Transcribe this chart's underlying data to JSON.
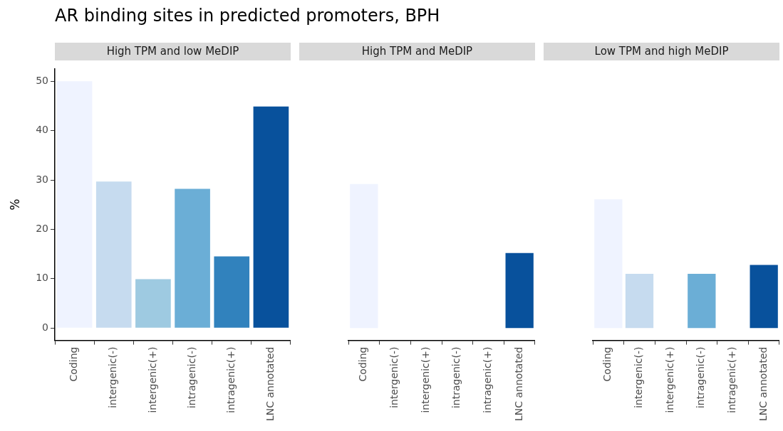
{
  "chart_data": [
    {
      "type": "bar",
      "title": "AR binding sites in predicted promoters, BPH",
      "subtitle": "High TPM and low MeDIP",
      "ylabel": "%",
      "categories": [
        "Coding",
        "intergenic(-)",
        "intergenic(+)",
        "intragenic(-)",
        "intragenic(+)",
        "LNC annotated"
      ],
      "values": [
        50,
        29.7,
        9.9,
        28.2,
        14.5,
        44.9
      ],
      "colors": [
        "#eff3ff",
        "#c6dbef",
        "#9ecae1",
        "#6baed6",
        "#3182bd",
        "#08519c"
      ],
      "ylim": [
        -2.5,
        52.5
      ],
      "yticks": [
        0,
        10,
        20,
        30,
        40,
        50
      ],
      "grid": false
    },
    {
      "type": "bar",
      "subtitle": "High TPM and MeDIP",
      "categories": [
        "Coding",
        "intergenic(-)",
        "intergenic(+)",
        "intragenic(-)",
        "intragenic(+)",
        "LNC annotated"
      ],
      "values": [
        29.2,
        null,
        null,
        null,
        null,
        15.2
      ],
      "colors": [
        "#eff3ff",
        "#c6dbef",
        "#9ecae1",
        "#6baed6",
        "#3182bd",
        "#08519c"
      ],
      "ylim": [
        -2.5,
        50
      ],
      "yticks": [
        0,
        10,
        20,
        30,
        40,
        50
      ],
      "grid": false,
      "tick_labels": "x"
    },
    {
      "type": "bar",
      "subtitle": "Low TPM and high MeDIP",
      "categories": [
        "Coding",
        "intergenic(-)",
        "intergenic(+)",
        "intragenic(-)",
        "intragenic(+)",
        "LNC annotated"
      ],
      "values": [
        26.1,
        11.0,
        null,
        11.0,
        null,
        12.8
      ],
      "colors": [
        "#eff3ff",
        "#c6dbef",
        "#9ecae1",
        "#6baed6",
        "#3182bd",
        "#08519c"
      ],
      "ylim": [
        -2.5,
        50
      ],
      "yticks": [
        0,
        10,
        20,
        30,
        40,
        50
      ],
      "grid": false,
      "tick_labels": "x"
    }
  ]
}
